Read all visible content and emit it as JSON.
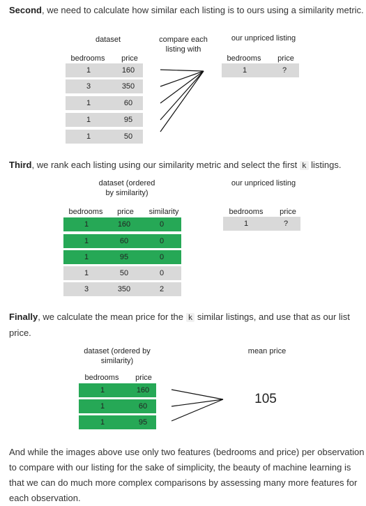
{
  "para1": {
    "bold": "Second",
    "rest": ", we need to calculate how similar each listing is to ours using a similarity metric."
  },
  "para2": {
    "bold": "Third",
    "pre": ", we rank each listing using our similarity metric and select the first ",
    "code": "k",
    "post": " listings."
  },
  "para3": {
    "bold": "Finally",
    "pre": ", we calculate the mean price for the ",
    "code": "k",
    "post": " similar listings, and use that as our list",
    "line2": "price."
  },
  "para4": {
    "line1": "And while the images above use only two features (bedrooms and price) per observation",
    "line2": "to compare with our listing for the sake of simplicity, the beauty of machine learning is",
    "line3": "that we can do much more complex comparisons by assessing many more features for",
    "line4": "each observation."
  },
  "fig1": {
    "dataset_title": "dataset",
    "compare_line1": "compare each",
    "compare_line2": "listing with",
    "unpriced_title": "our unpriced listing",
    "col_bedrooms": "bedrooms",
    "col_price": "price",
    "rows": [
      {
        "bedrooms": "1",
        "price": "160"
      },
      {
        "bedrooms": "3",
        "price": "350"
      },
      {
        "bedrooms": "1",
        "price": "60"
      },
      {
        "bedrooms": "1",
        "price": "95"
      },
      {
        "bedrooms": "1",
        "price": "50"
      }
    ],
    "unpriced": {
      "bedrooms": "1",
      "price": "?"
    }
  },
  "fig2": {
    "dataset_line1": "dataset (ordered",
    "dataset_line2": "by similarity)",
    "unpriced_title": "our unpriced listing",
    "col_bedrooms": "bedrooms",
    "col_price": "price",
    "col_similarity": "similarity",
    "rows": [
      {
        "bedrooms": "1",
        "price": "160",
        "similarity": "0",
        "selected": true
      },
      {
        "bedrooms": "1",
        "price": "60",
        "similarity": "0",
        "selected": true
      },
      {
        "bedrooms": "1",
        "price": "95",
        "similarity": "0",
        "selected": true
      },
      {
        "bedrooms": "1",
        "price": "50",
        "similarity": "0",
        "selected": false
      },
      {
        "bedrooms": "3",
        "price": "350",
        "similarity": "2",
        "selected": false
      }
    ],
    "unpriced": {
      "bedrooms": "1",
      "price": "?"
    }
  },
  "fig3": {
    "dataset_line1": "dataset (ordered by",
    "dataset_line2": "similarity)",
    "mean_title": "mean price",
    "col_bedrooms": "bedrooms",
    "col_price": "price",
    "rows": [
      {
        "bedrooms": "1",
        "price": "160"
      },
      {
        "bedrooms": "1",
        "price": "60"
      },
      {
        "bedrooms": "1",
        "price": "95"
      }
    ],
    "mean_value": "105"
  },
  "colors": {
    "grey_row": "#d9d9d9",
    "selected_row": "#26a856",
    "text": "#333333"
  }
}
